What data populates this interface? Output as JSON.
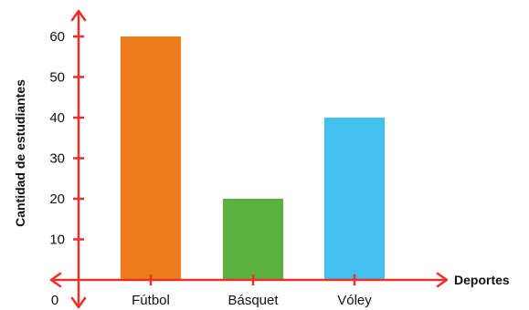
{
  "chart_data": {
    "type": "bar",
    "categories": [
      "Fútbol",
      "Básquet",
      "Vóley"
    ],
    "values": [
      60,
      20,
      40
    ],
    "bar_colors": [
      "#ef7c1a",
      "#5cb040",
      "#42c0ee"
    ],
    "xlabel": "Deportes",
    "ylabel": "Cantidad de estudiantes",
    "origin_label": "0",
    "yticks": [
      10,
      20,
      30,
      40,
      50,
      60
    ],
    "ylim": [
      0,
      70
    ],
    "axis_color": "#e8302a",
    "grid": false
  }
}
